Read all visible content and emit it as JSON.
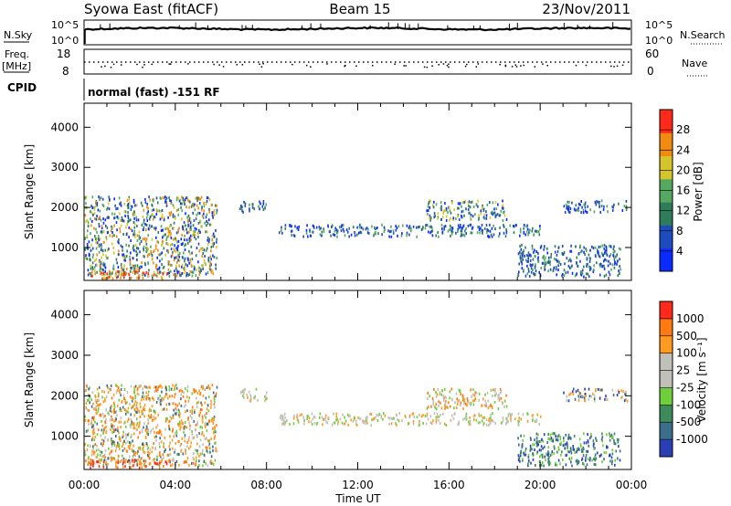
{
  "header": {
    "station": "Syowa East (fitACF)",
    "beam": "Beam 15",
    "date": "23/Nov/2011"
  },
  "top_panel": {
    "left_label": "N.Sky",
    "left_ticks": [
      "10^5",
      "10^0"
    ],
    "right_ticks": [
      "10^5",
      "10^0"
    ],
    "right_label": "N.Search",
    "right_label_style": "dotted"
  },
  "freq_panel": {
    "left_label_line1": "Freq.",
    "left_label_line2": "[MHz]",
    "left_ticks": [
      "18",
      "8"
    ],
    "right_ticks": [
      "60",
      "0"
    ],
    "right_label": "Nave",
    "right_label_style": "dotted"
  },
  "cpid": {
    "label": "CPID",
    "text": "normal (fast) -151 RF"
  },
  "chart_data": [
    {
      "type": "heatmap",
      "name": "Power",
      "xlabel": "",
      "ylabel": "Slant Range [km]",
      "xlim": [
        0,
        24
      ],
      "ylim": [
        180,
        4600
      ],
      "y_ticks": [
        1000,
        2000,
        3000,
        4000
      ],
      "y_tick_labels": [
        "1000",
        "2000",
        "3000",
        "4000"
      ],
      "colorbar": {
        "label": "Power [dB]",
        "tick_labels": [
          "4",
          "8",
          "12",
          "16",
          "20",
          "24",
          "28"
        ],
        "colors": [
          "#0a2bff",
          "#1e4bbf",
          "#2e7d5a",
          "#55a860",
          "#d4c62a",
          "#f08a10",
          "#ff2a1a"
        ]
      },
      "scatter_regions": [
        {
          "t": [
            0.0,
            5.8
          ],
          "r": [
            300,
            2300
          ],
          "dominant": "green-orange"
        },
        {
          "t": [
            0.2,
            3.8
          ],
          "r": [
            250,
            450
          ],
          "dominant": "red"
        },
        {
          "t": [
            6.8,
            8.0
          ],
          "r": [
            1900,
            2200
          ],
          "dominant": "blue-green"
        },
        {
          "t": [
            8.5,
            20.0
          ],
          "r": [
            1300,
            1600
          ],
          "dominant": "blue-green"
        },
        {
          "t": [
            15.0,
            18.5
          ],
          "r": [
            1700,
            2200
          ],
          "dominant": "green-yellow"
        },
        {
          "t": [
            19.0,
            23.5
          ],
          "r": [
            300,
            1100
          ],
          "dominant": "blue-green"
        },
        {
          "t": [
            21.0,
            23.8
          ],
          "r": [
            1900,
            2200
          ],
          "dominant": "blue-green"
        }
      ]
    },
    {
      "type": "heatmap",
      "name": "Velocity",
      "xlabel": "Time UT",
      "ylabel": "Slant Range [km]",
      "xlim": [
        0,
        24
      ],
      "ylim": [
        180,
        4600
      ],
      "x_ticks": [
        0,
        4,
        8,
        12,
        16,
        20,
        24
      ],
      "x_tick_labels": [
        "00:00",
        "04:00",
        "08:00",
        "12:00",
        "16:00",
        "20:00",
        "00:00"
      ],
      "y_ticks": [
        1000,
        2000,
        3000,
        4000
      ],
      "y_tick_labels": [
        "1000",
        "2000",
        "3000",
        "4000"
      ],
      "colorbar": {
        "label": "Velocity [m s⁻¹]",
        "tick_labels": [
          "1000",
          "500",
          "100",
          "25",
          "-25",
          "-100",
          "-500",
          "-1000"
        ],
        "colors": [
          "#2a3fb5",
          "#3b6e8a",
          "#3e8a5a",
          "#6ecf3a",
          "#c0c0b8",
          "#c0c0b8",
          "#ff9a20",
          "#ff7a10",
          "#ff2a1a"
        ]
      },
      "scatter_regions": [
        {
          "t": [
            0.0,
            5.8
          ],
          "r": [
            300,
            2300
          ],
          "dominant": "orange"
        },
        {
          "t": [
            0.2,
            3.8
          ],
          "r": [
            250,
            450
          ],
          "dominant": "orange-red"
        },
        {
          "t": [
            6.8,
            8.0
          ],
          "r": [
            1900,
            2200
          ],
          "dominant": "grey"
        },
        {
          "t": [
            8.5,
            20.0
          ],
          "r": [
            1300,
            1600
          ],
          "dominant": "grey"
        },
        {
          "t": [
            15.0,
            18.5
          ],
          "r": [
            1700,
            2200
          ],
          "dominant": "grey-orange"
        },
        {
          "t": [
            19.0,
            23.5
          ],
          "r": [
            300,
            1100
          ],
          "dominant": "blue-green"
        },
        {
          "t": [
            21.0,
            23.8
          ],
          "r": [
            1900,
            2200
          ],
          "dominant": "grey-blue"
        }
      ]
    }
  ]
}
